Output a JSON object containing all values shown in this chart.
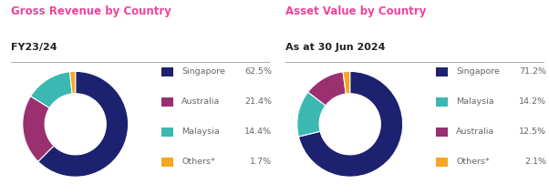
{
  "chart1": {
    "title_pink": "Gross Revenue by Country",
    "title_black": "FY23/24",
    "labels": [
      "Singapore",
      "Australia",
      "Malaysia",
      "Others*"
    ],
    "values": [
      62.5,
      21.4,
      14.4,
      1.7
    ],
    "colors": [
      "#1c2270",
      "#9b3070",
      "#3cb8b2",
      "#f5a623"
    ],
    "pct_labels": [
      "62.5%",
      "21.4%",
      "14.4%",
      "1.7%"
    ]
  },
  "chart2": {
    "title_pink": "Asset Value by Country",
    "title_black": "As at 30 Jun 2024",
    "labels": [
      "Singapore",
      "Malaysia",
      "Australia",
      "Others*"
    ],
    "values": [
      71.2,
      14.2,
      12.5,
      2.1
    ],
    "colors": [
      "#1c2270",
      "#3cb8b2",
      "#9b3070",
      "#f5a623"
    ],
    "pct_labels": [
      "71.2%",
      "14.2%",
      "12.5%",
      "2.1%"
    ]
  },
  "bg_color": "#ffffff",
  "pink_color": "#f0429a",
  "dark_color": "#222222",
  "legend_text_color": "#666666",
  "divider_color": "#aaaaaa",
  "title_fontsize": 8.5,
  "subtitle_fontsize": 8.0,
  "legend_fontsize": 6.8
}
